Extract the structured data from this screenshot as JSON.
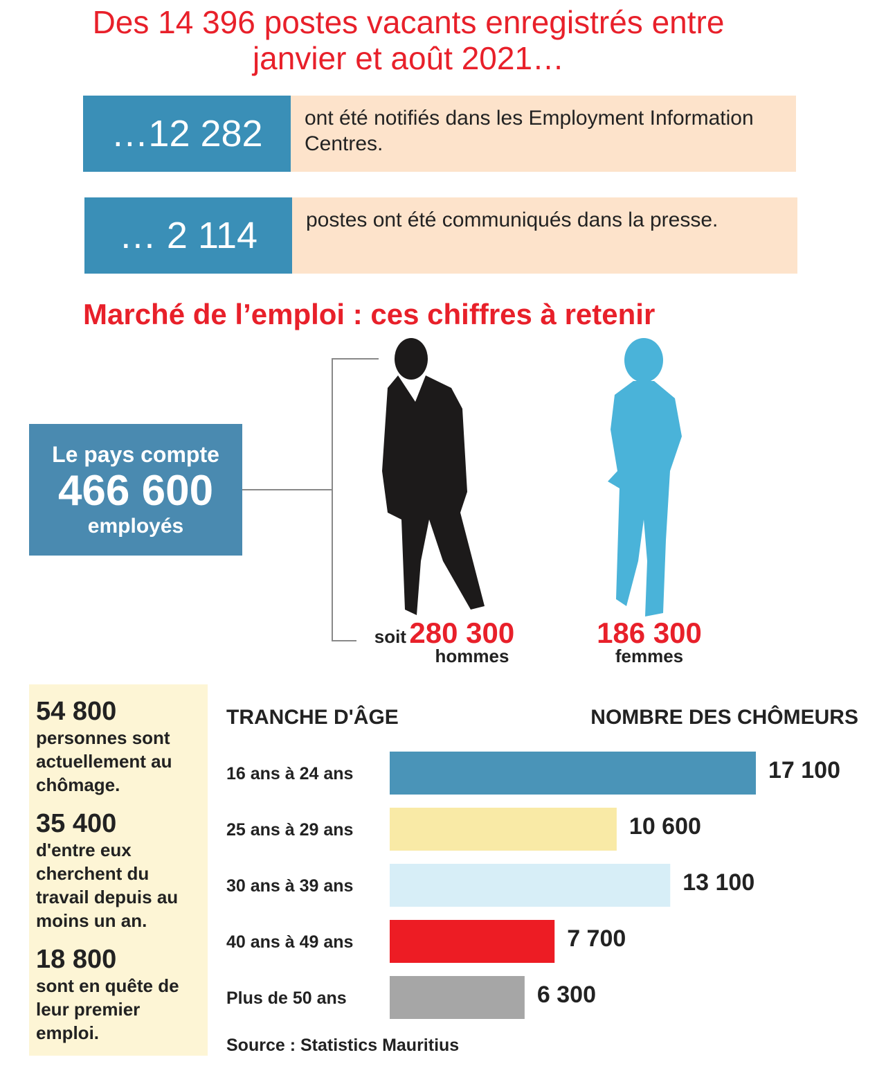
{
  "title_lines": [
    "Des 14 396 postes vacants enregistrés entre",
    "janvier et août 2021…"
  ],
  "callouts": [
    {
      "number": "…12 282",
      "text": "ont été notifiés dans les Employment Information Centres."
    },
    {
      "number": "… 2 114",
      "text": "postes ont été communiqués dans la presse."
    }
  ],
  "section_title": "Marché de l’emploi : ces chiffres à retenir",
  "employed": {
    "intro": "Le pays compte",
    "number": "466 600",
    "unit": "employés"
  },
  "men": {
    "prefix": "soit",
    "number": "280 300",
    "label": "hommes"
  },
  "women": {
    "number": "186 300",
    "label": "femmes"
  },
  "unemployed": [
    {
      "number": "54 800",
      "text": "personnes sont actuellement au chômage."
    },
    {
      "number": "35 400",
      "text": "d'entre eux cherchent du travail depuis au moins un an."
    },
    {
      "number": "18 800",
      "text": "sont en quête de leur premier emploi."
    }
  ],
  "chart_data": {
    "type": "bar",
    "orientation": "horizontal",
    "x_label": "TRANCHE D'ÂGE",
    "y_label": "NOMBRE DES CHÔMEURS",
    "categories": [
      "16 ans à 24 ans",
      "25 ans à 29 ans",
      "30 ans à 39 ans",
      "40 ans à 49 ans",
      "Plus de 50 ans"
    ],
    "values": [
      17100,
      10600,
      13100,
      7700,
      6300
    ],
    "value_labels": [
      "17 100",
      "10 600",
      "13 100",
      "7 700",
      "6 300"
    ],
    "colors": [
      "#4a94b8",
      "#f9eaa6",
      "#d7eef7",
      "#ed1c24",
      "#a6a6a6"
    ],
    "source": "Source : Statistics Mauritius"
  }
}
